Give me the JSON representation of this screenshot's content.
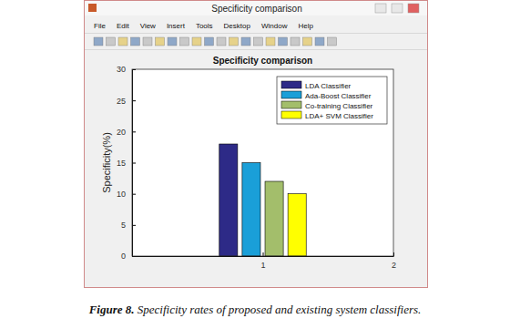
{
  "window": {
    "title": "Specificity comparison",
    "menu": [
      "File",
      "Edit",
      "View",
      "Insert",
      "Tools",
      "Desktop",
      "Window",
      "Help"
    ]
  },
  "chart_data": {
    "type": "bar",
    "title": "Specificity comparison",
    "y_label": "Specificity(%)",
    "x": [
      1
    ],
    "series": [
      {
        "name": "LDA Classifier",
        "color": "#2d2a87",
        "values": [
          18
        ]
      },
      {
        "name": "Ada-Boost Classifier",
        "color": "#1a9fd8",
        "values": [
          15
        ]
      },
      {
        "name": "Co-training Classifier",
        "color": "#a3be6b",
        "values": [
          12
        ]
      },
      {
        "name": "LDA+ SVM Classifier",
        "color": "#ffff00",
        "values": [
          10
        ]
      }
    ],
    "xlim": [
      0,
      2
    ],
    "xticks": [
      1,
      2
    ],
    "ylim": [
      0,
      30
    ],
    "yticks": [
      0,
      5,
      10,
      15,
      20,
      25,
      30
    ],
    "grid": false,
    "legend": "upper right"
  },
  "caption": {
    "label": "Figure 8.",
    "text": "Specificity rates of proposed and existing system classifiers."
  }
}
